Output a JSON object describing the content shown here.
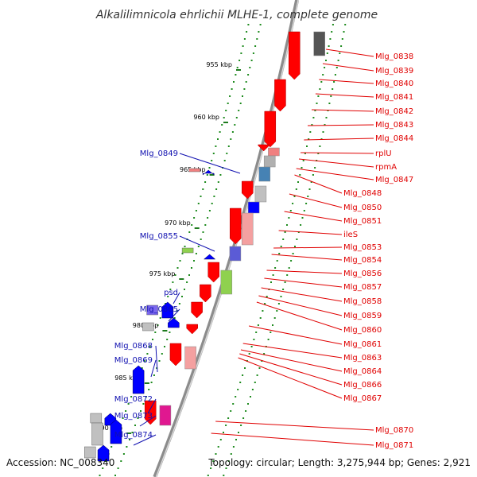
{
  "title": "Alkalilimnicola ehrlichii MLHE-1, complete genome",
  "footer": {
    "accession": "Accession: NC_008340",
    "topology": "Topology: circular; Length: 3,275,944 bp; Genes: 2,921"
  },
  "ticks": [
    "955 kbp",
    "960 kbp",
    "965 kbp",
    "970 kbp",
    "975 kbp",
    "980 kbp",
    "985 kbp",
    "990 kbp"
  ],
  "right_labels": [
    "Mlg_0838",
    "Mlg_0839",
    "Mlg_0840",
    "Mlg_0841",
    "Mlg_0842",
    "Mlg_0843",
    "Mlg_0844",
    "rplU",
    "rpmA",
    "Mlg_0847",
    "Mlg_0848",
    "Mlg_0850",
    "Mlg_0851",
    "ileS",
    "Mlg_0853",
    "Mlg_0854",
    "Mlg_0856",
    "Mlg_0857",
    "Mlg_0858",
    "Mlg_0859",
    "Mlg_0860",
    "Mlg_0861",
    "Mlg_0863",
    "Mlg_0864",
    "Mlg_0866",
    "Mlg_0867",
    "Mlg_0870",
    "Mlg_0871"
  ],
  "left_labels": [
    "Mlg_0849",
    "Mlg_0855",
    "psd",
    "Mlg_0865",
    "Mlg_0868",
    "Mlg_0869",
    "Mlg_0872",
    "Mlg_0873",
    "Mlg_0874"
  ],
  "colors": {
    "backbone": "#8c8c8c",
    "plus_strand_gene": "#ff0000",
    "minus_strand_gene": "#0000ff",
    "right_label": "#e00000",
    "left_label": "#1010b0",
    "tick": "#1e7b1e"
  }
}
